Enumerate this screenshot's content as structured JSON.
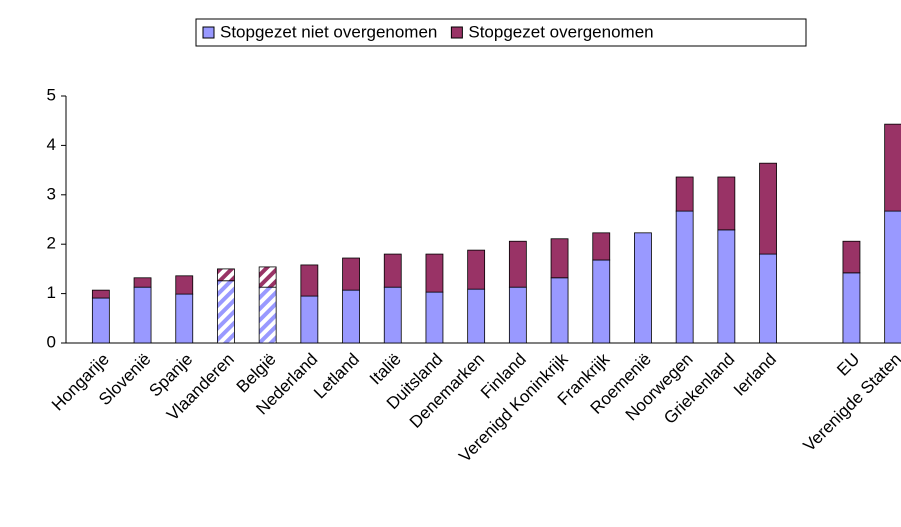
{
  "chart_data": {
    "type": "stacked_bar",
    "categories": [
      "Hongarije",
      "Slovenië",
      "Spanje",
      "Vlaanderen",
      "België",
      "Nederland",
      "Letland",
      "Italië",
      "Duitsland",
      "Denemarken",
      "Finland",
      "Verenigd Koninkrijk",
      "Frankrijk",
      "Roemenië",
      "Noorwegen",
      "Griekenland",
      "Ierland",
      null,
      "EU",
      "Verenigde Staten"
    ],
    "series": [
      {
        "name": "Stopgezet niet overgenomen",
        "color": "#9999ff",
        "values": [
          0.91,
          1.13,
          0.99,
          1.26,
          1.13,
          0.95,
          1.07,
          1.13,
          1.03,
          1.09,
          1.13,
          1.32,
          1.68,
          2.23,
          2.67,
          2.29,
          1.8,
          null,
          1.42,
          2.67
        ]
      },
      {
        "name": "Stopgezet overgenomen",
        "color": "#993366",
        "values": [
          0.16,
          0.19,
          0.37,
          0.24,
          0.41,
          0.63,
          0.65,
          0.67,
          0.77,
          0.79,
          0.93,
          0.79,
          0.55,
          0,
          0.69,
          1.07,
          1.84,
          null,
          0.64,
          1.76
        ]
      }
    ],
    "hatched_indices": [
      3,
      4
    ],
    "ylim": [
      0,
      5
    ],
    "yticks": [
      0,
      1,
      2,
      3,
      4,
      5
    ],
    "grid": false,
    "legend": "top"
  }
}
